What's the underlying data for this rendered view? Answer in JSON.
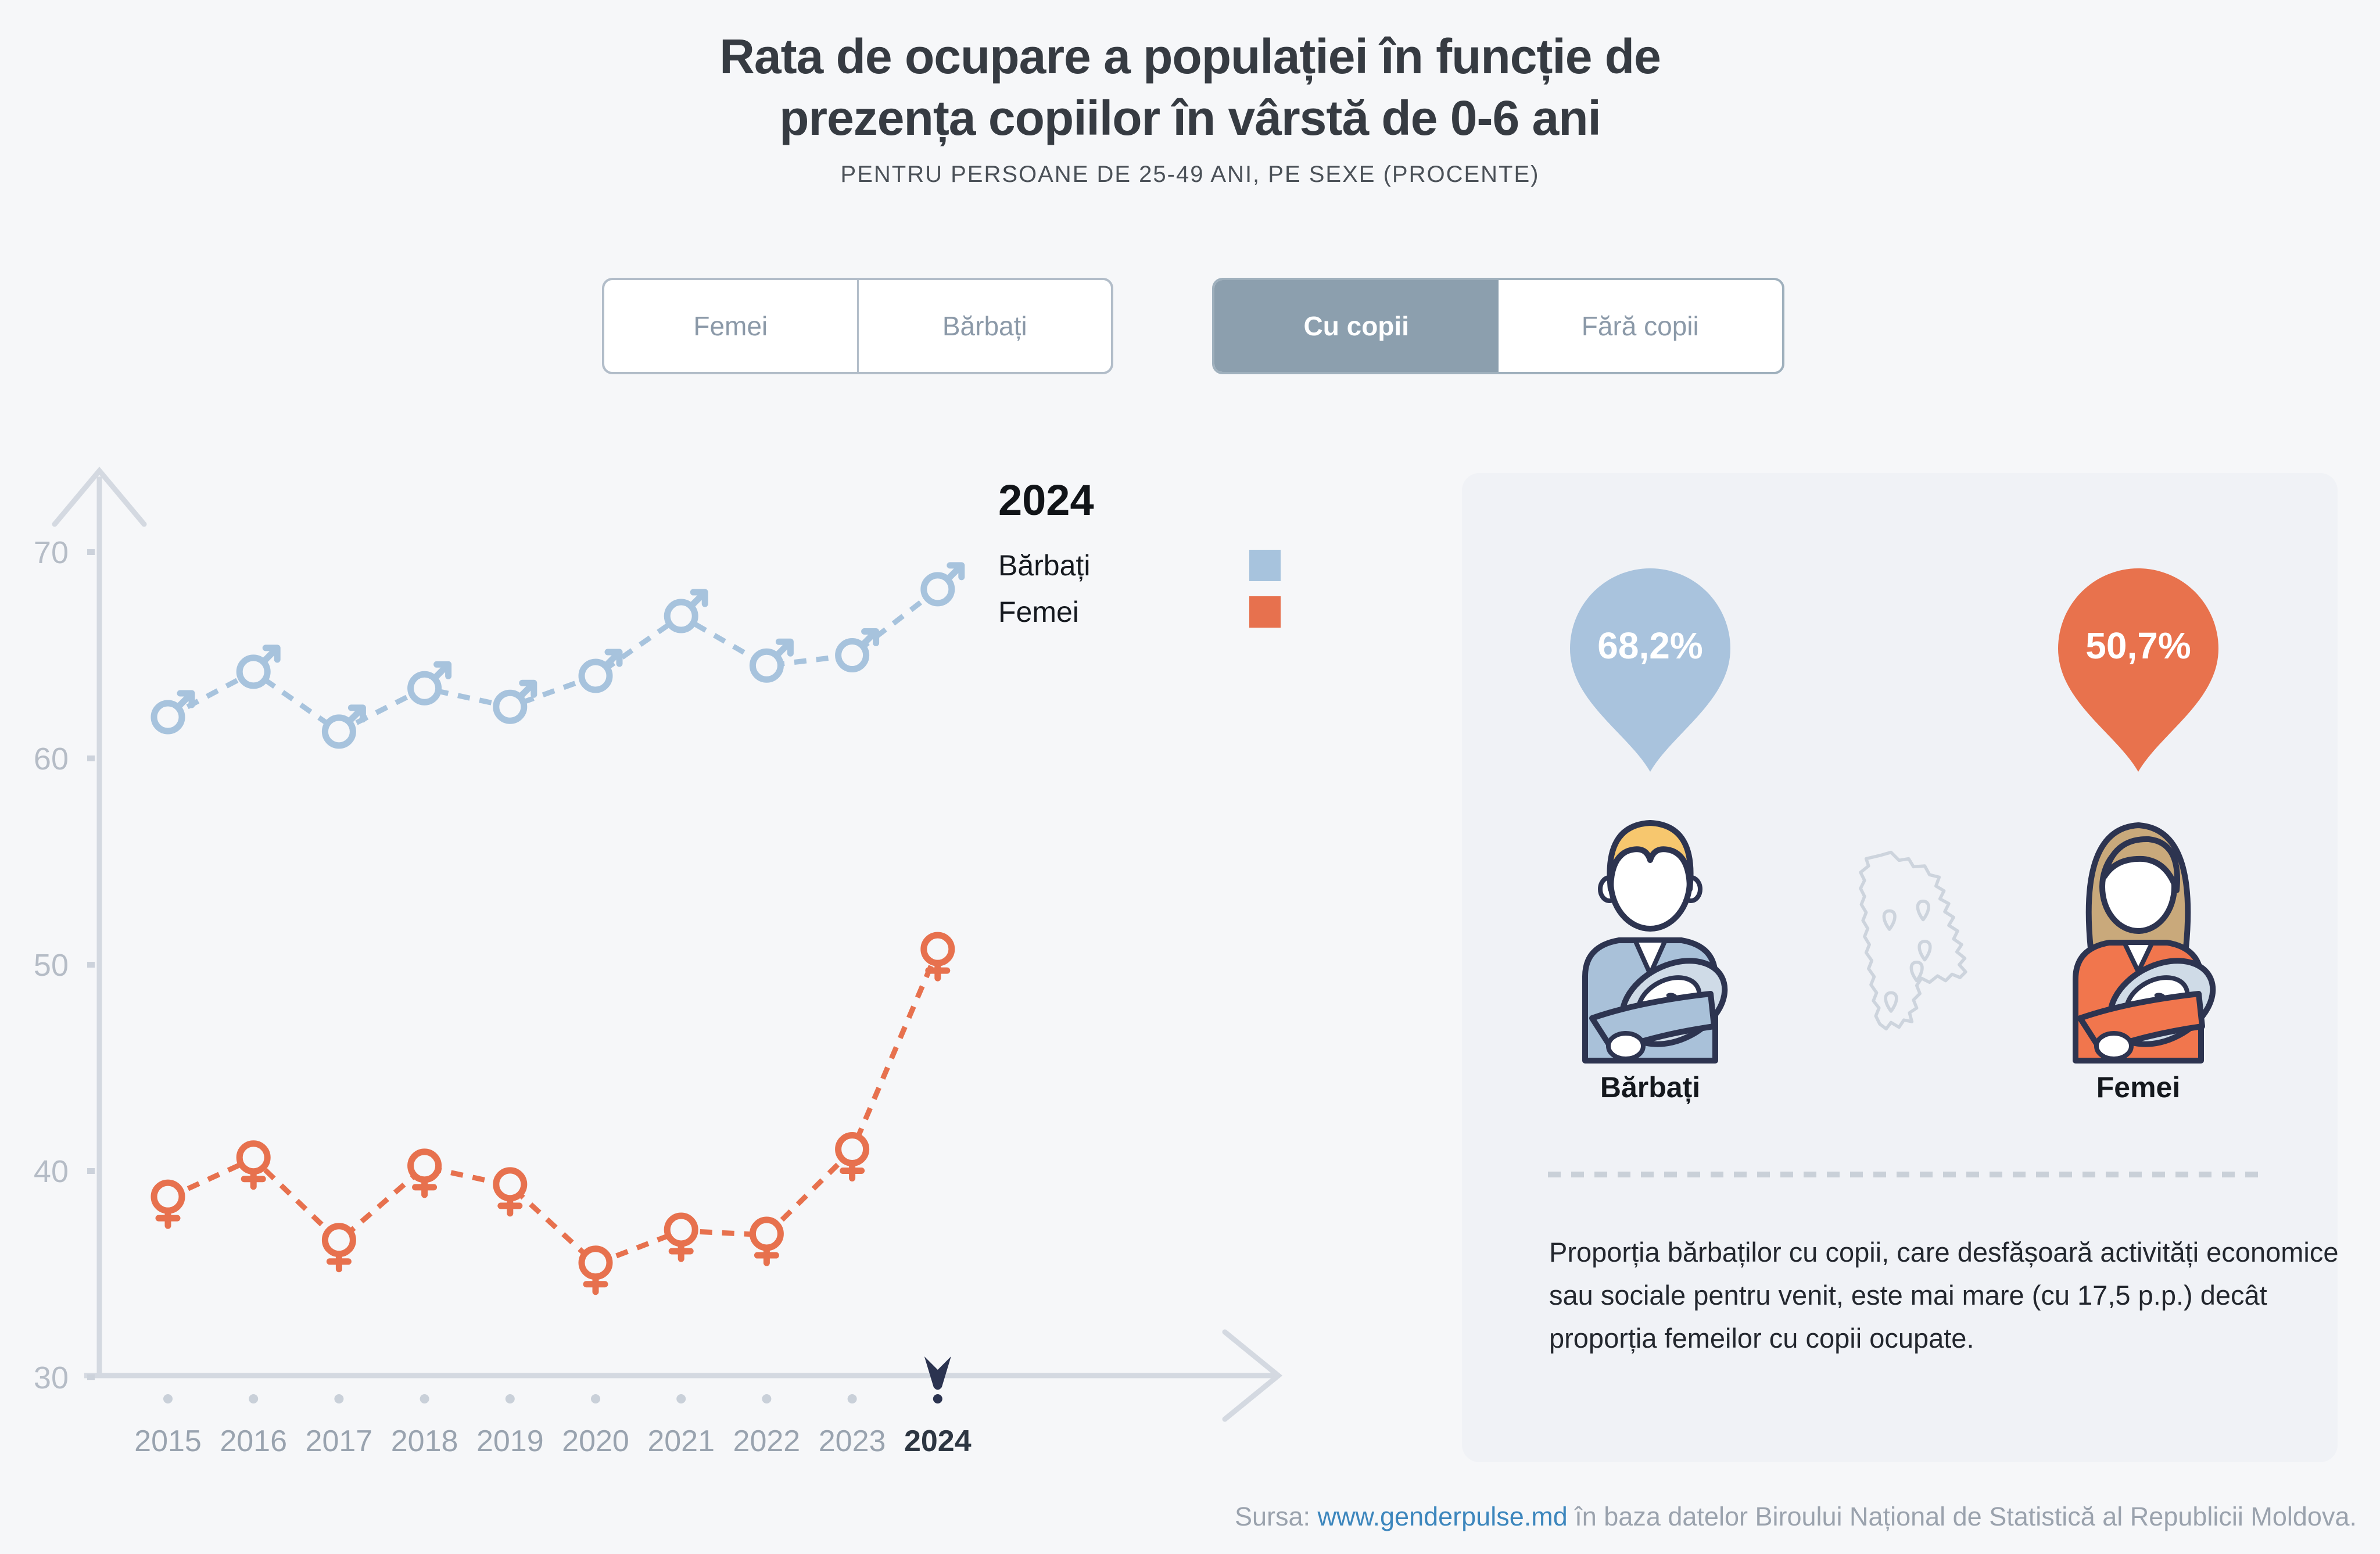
{
  "header": {
    "title_line1": "Rata de ocupare a populației în funcție de",
    "title_line2": "prezența copiilor în vârstă de 0-6 ani",
    "subtitle": "PENTRU PERSOANE DE 25-49 ANI, PE SEXE (PROCENTE)"
  },
  "controls": {
    "sex_toggle": {
      "options": [
        {
          "label": "Femei",
          "selected": false
        },
        {
          "label": "Bărbați",
          "selected": false
        }
      ]
    },
    "children_toggle": {
      "options": [
        {
          "label": "Cu copii",
          "selected": true
        },
        {
          "label": "Fără copii",
          "selected": false
        }
      ]
    }
  },
  "chart_data": {
    "type": "line",
    "line_style": "dashed",
    "x": [
      2015,
      2016,
      2017,
      2018,
      2019,
      2020,
      2021,
      2022,
      2023,
      2024
    ],
    "series": [
      {
        "name": "Bărbați",
        "marker": "male",
        "color": "#a7c3dd",
        "values": [
          62.0,
          64.2,
          61.3,
          63.4,
          62.5,
          64.0,
          66.9,
          64.5,
          65.0,
          68.2
        ]
      },
      {
        "name": "Femei",
        "marker": "female",
        "color": "#e7714e",
        "values": [
          38.7,
          40.6,
          36.6,
          40.2,
          39.3,
          35.5,
          37.1,
          36.9,
          41.0,
          50.7
        ]
      }
    ],
    "ylim": [
      30,
      70
    ],
    "yticks": [
      70,
      60,
      50,
      40,
      30
    ],
    "selected_year": "2024",
    "grid": false,
    "legend": {
      "position": "top-right",
      "title": "2024",
      "entries": [
        {
          "label": "Bărbați",
          "color": "#a7c3dd"
        },
        {
          "label": "Femei",
          "color": "#e7714e"
        }
      ]
    }
  },
  "infocard": {
    "badges": [
      {
        "value": "68,2%",
        "color": "#a9c3dd",
        "label": "Bărbați"
      },
      {
        "value": "50,7%",
        "color": "#e8724d",
        "label": "Femei"
      }
    ],
    "note": "Proporția bărbaților cu copii, care desfășoară activități economice sau sociale pentru venit, este mai mare (cu 17,5 p.p.) decât proporția femeilor cu copii ocupate."
  },
  "footer": {
    "prefix": "Sursa: ",
    "link": "www.genderpulse.md",
    "suffix": " în baza datelor Biroului Național de Statistică al Republicii Moldova."
  }
}
